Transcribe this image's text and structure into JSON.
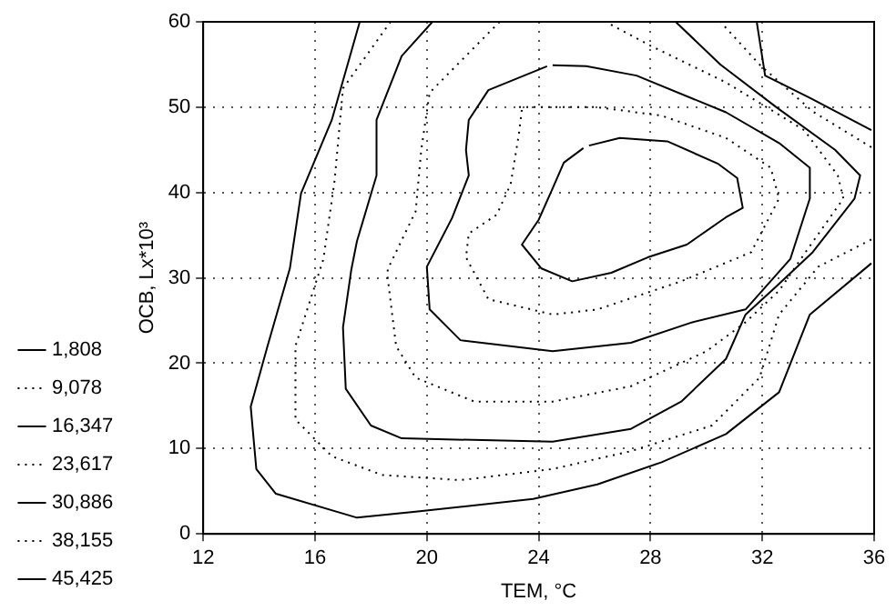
{
  "chart_data": {
    "type": "line",
    "xlabel": "ТЕМ, °C",
    "ylabel": "ОСВ, Lx*10³",
    "xlim": [
      12,
      36
    ],
    "ylim": [
      0,
      60
    ],
    "xticks": [
      12,
      16,
      20,
      24,
      28,
      32,
      36
    ],
    "yticks": [
      0,
      10,
      20,
      30,
      40,
      50,
      60
    ],
    "grid": true,
    "legend": "left",
    "marker": "none",
    "series": [
      {
        "name": "1,808",
        "color": "#000000",
        "line_style": "solid",
        "x": [
          17.6,
          16.6,
          15.5,
          15.1,
          14.3,
          13.7,
          13.9,
          14.6,
          17.5,
          19.6,
          23.8,
          26.1,
          28.4,
          30.7,
          32.6,
          33.7,
          35.9,
          null,
          35.9,
          33.7,
          32.1,
          31.8
        ],
        "values": [
          60,
          48.5,
          39.9,
          31.1,
          22,
          14.9,
          7.6,
          4.7,
          1.9,
          2.6,
          4.1,
          5.8,
          8.4,
          11.7,
          16.6,
          25.7,
          31.7,
          null,
          47.3,
          51.1,
          53.7,
          60
        ]
      },
      {
        "name": "9,078",
        "color": "#000000",
        "line_style": "dotted",
        "x": [
          18.7,
          17,
          16.7,
          16.3,
          15.3,
          15.3,
          16.6,
          18.4,
          21.2,
          24.5,
          27.3,
          30.2,
          31.9,
          32.6,
          34,
          35.9,
          null,
          35.9,
          33.8,
          31.9,
          30.5
        ],
        "values": [
          60,
          52.2,
          41.4,
          32.2,
          22,
          13.4,
          9.1,
          6.9,
          6.3,
          7.6,
          9.7,
          12.7,
          18.3,
          25.7,
          31.3,
          34.5,
          null,
          45.3,
          49.5,
          55,
          60
        ]
      },
      {
        "name": "16,347",
        "color": "#000000",
        "line_style": "solid",
        "x": [
          20.2,
          19.1,
          18.2,
          18.2,
          17.5,
          17.3,
          17,
          17.1,
          18,
          19.1,
          24.5,
          27.3,
          29.1,
          30.7,
          31.4,
          32.5,
          33.8,
          35.3,
          35.5,
          34.6,
          32.5,
          30.5,
          28.9
        ],
        "values": [
          60,
          56,
          48.5,
          42,
          34.3,
          31,
          24.2,
          17,
          12.7,
          11.2,
          10.8,
          12.3,
          15.5,
          20.5,
          25.7,
          29,
          33,
          39.3,
          42,
          45,
          50,
          55,
          60
        ]
      },
      {
        "name": "23,617",
        "color": "#000000",
        "line_style": "dotted",
        "x": [
          22.6,
          20.1,
          19.8,
          19.6,
          18.6,
          18.6,
          18.9,
          19.6,
          21.7,
          24.5,
          27.3,
          30,
          31.4,
          32.6,
          33.5,
          34.9,
          34.7,
          33.5,
          30.7,
          28,
          26.4
        ],
        "values": [
          60,
          51.7,
          45,
          37.8,
          31,
          30,
          22,
          18.3,
          15.5,
          15.5,
          17.3,
          21.4,
          24.8,
          28.5,
          32.8,
          39.3,
          42,
          47.3,
          52.9,
          57.2,
          60
        ]
      },
      {
        "name": "30,886",
        "color": "#000000",
        "line_style": "solid",
        "x": [
          24.3,
          22.2,
          21.5,
          21.4,
          21.5,
          20.9,
          20,
          20.1,
          21.2,
          24.5,
          27.3,
          29.5,
          31.4,
          33,
          33.7,
          33.7,
          32.6,
          30.7,
          27.5,
          25.7,
          24.5
        ],
        "values": [
          54.8,
          52,
          48.5,
          45,
          42,
          37,
          31.3,
          26.3,
          22.7,
          21.4,
          22.4,
          24.8,
          26.3,
          32.2,
          39.3,
          42.9,
          45.8,
          49.4,
          53.7,
          54.8,
          54.9
        ]
      },
      {
        "name": "38,155",
        "color": "#000000",
        "line_style": "dotted",
        "x": [
          23.3,
          26.1,
          28.4,
          30.7,
          32.3,
          32.6,
          31.6,
          29.1,
          26.1,
          24.5,
          22.2,
          21.4,
          21.5,
          22.5,
          23,
          23.3,
          23.4
        ],
        "values": [
          50,
          50,
          49,
          46.4,
          42.9,
          39.3,
          33,
          29.6,
          26.3,
          25.7,
          27.5,
          32.4,
          35.2,
          37.4,
          41,
          47,
          49.8
        ]
      },
      {
        "name": "45,425",
        "color": "#000000",
        "line_style": "solid",
        "x": [
          25.8,
          26.9,
          28.6,
          30.4,
          31.1,
          31.3,
          30.7,
          29.3,
          27.9,
          26.6,
          25.2,
          24.1,
          23.4,
          24,
          24.5,
          24.9,
          25.6
        ],
        "values": [
          45.5,
          46.4,
          46,
          43.4,
          41.7,
          38.2,
          37.1,
          33.9,
          32.4,
          30.6,
          29.6,
          31.1,
          33.9,
          36.8,
          40.5,
          43.5,
          45.2
        ]
      }
    ]
  }
}
